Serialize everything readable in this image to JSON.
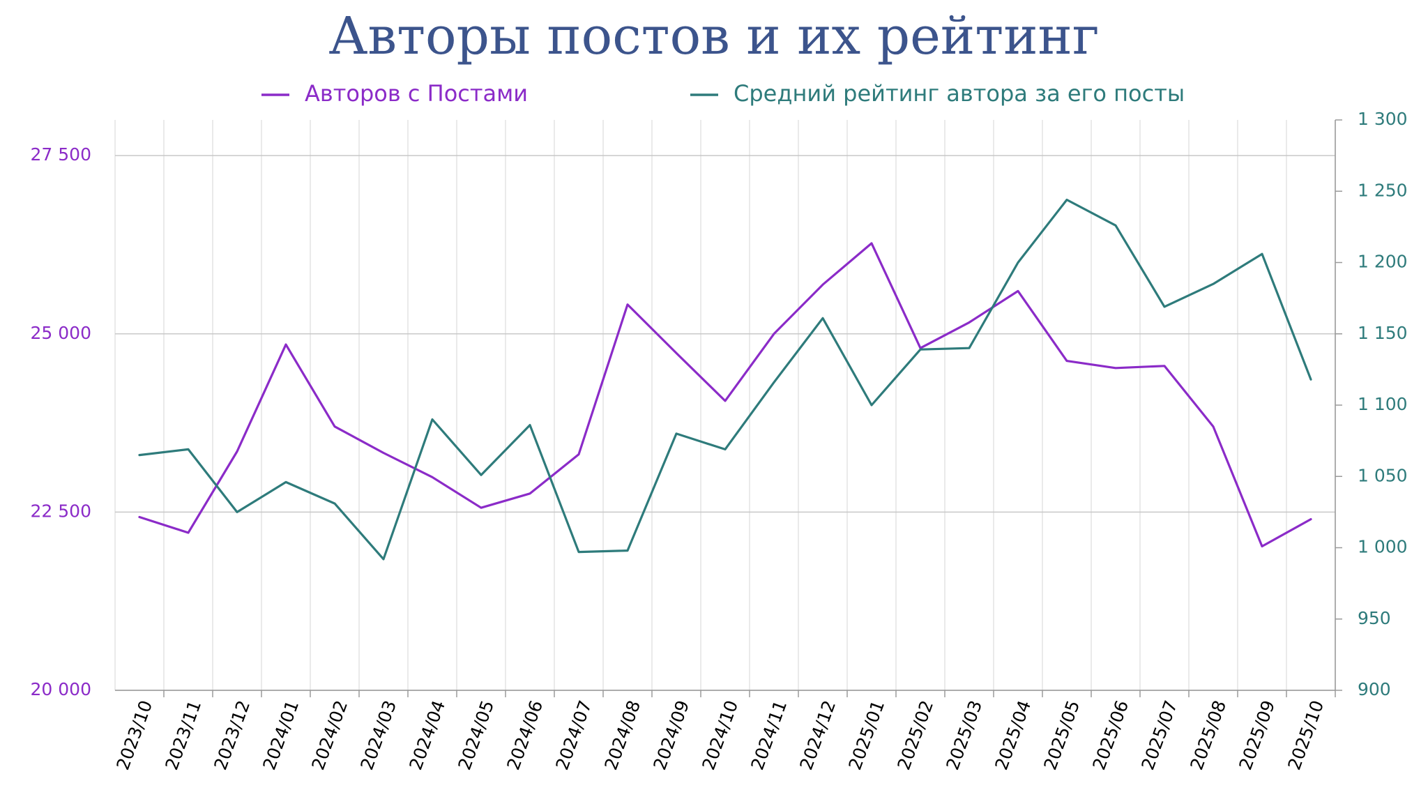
{
  "chart_data": {
    "type": "line",
    "title": "Авторы постов и их рейтинг",
    "title_color": "#3c548c",
    "categories": [
      "2023/10",
      "2023/11",
      "2023/12",
      "2024/01",
      "2024/02",
      "2024/03",
      "2024/04",
      "2024/05",
      "2024/06",
      "2024/07",
      "2024/08",
      "2024/09",
      "2024/10",
      "2024/11",
      "2024/12",
      "2025/01",
      "2025/02",
      "2025/03",
      "2025/04",
      "2025/05",
      "2025/06",
      "2025/07",
      "2025/08",
      "2025/09",
      "2025/10"
    ],
    "series": [
      {
        "name": "Авторов с Постами",
        "axis": "left",
        "color": "#8b2bc8",
        "values": [
          22430,
          22210,
          23350,
          24850,
          23700,
          23330,
          22990,
          22560,
          22760,
          23310,
          25410,
          24730,
          24060,
          25000,
          25690,
          26270,
          24800,
          25160,
          25600,
          24620,
          24520,
          24550,
          23700,
          22020,
          22400
        ]
      },
      {
        "name": "Средний рейтинг автора за его посты",
        "axis": "right",
        "color": "#2e7b7b",
        "values": [
          1065,
          1069,
          1025,
          1046,
          1031,
          992,
          1090,
          1051,
          1086,
          997,
          998,
          1080,
          1069,
          1116,
          1161,
          1100,
          1139,
          1140,
          1200,
          1244,
          1226,
          1169,
          1185,
          1206,
          1118
        ]
      }
    ],
    "y_left": {
      "min": 20000,
      "max": 28000,
      "ticks": [
        "20 000",
        "22 500",
        "25 000",
        "27 500"
      ],
      "tick_values": [
        20000,
        22500,
        25000,
        27500
      ],
      "color": "#8b2bc8"
    },
    "y_right": {
      "min": 900,
      "max": 1300,
      "ticks": [
        "900",
        "950",
        "1 000",
        "1 050",
        "1 100",
        "1 150",
        "1 200",
        "1 250",
        "1 300"
      ],
      "tick_values": [
        900,
        950,
        1000,
        1050,
        1100,
        1150,
        1200,
        1250,
        1300
      ],
      "color": "#2e7b7b"
    },
    "grid": true,
    "legend_position": "top-center"
  }
}
